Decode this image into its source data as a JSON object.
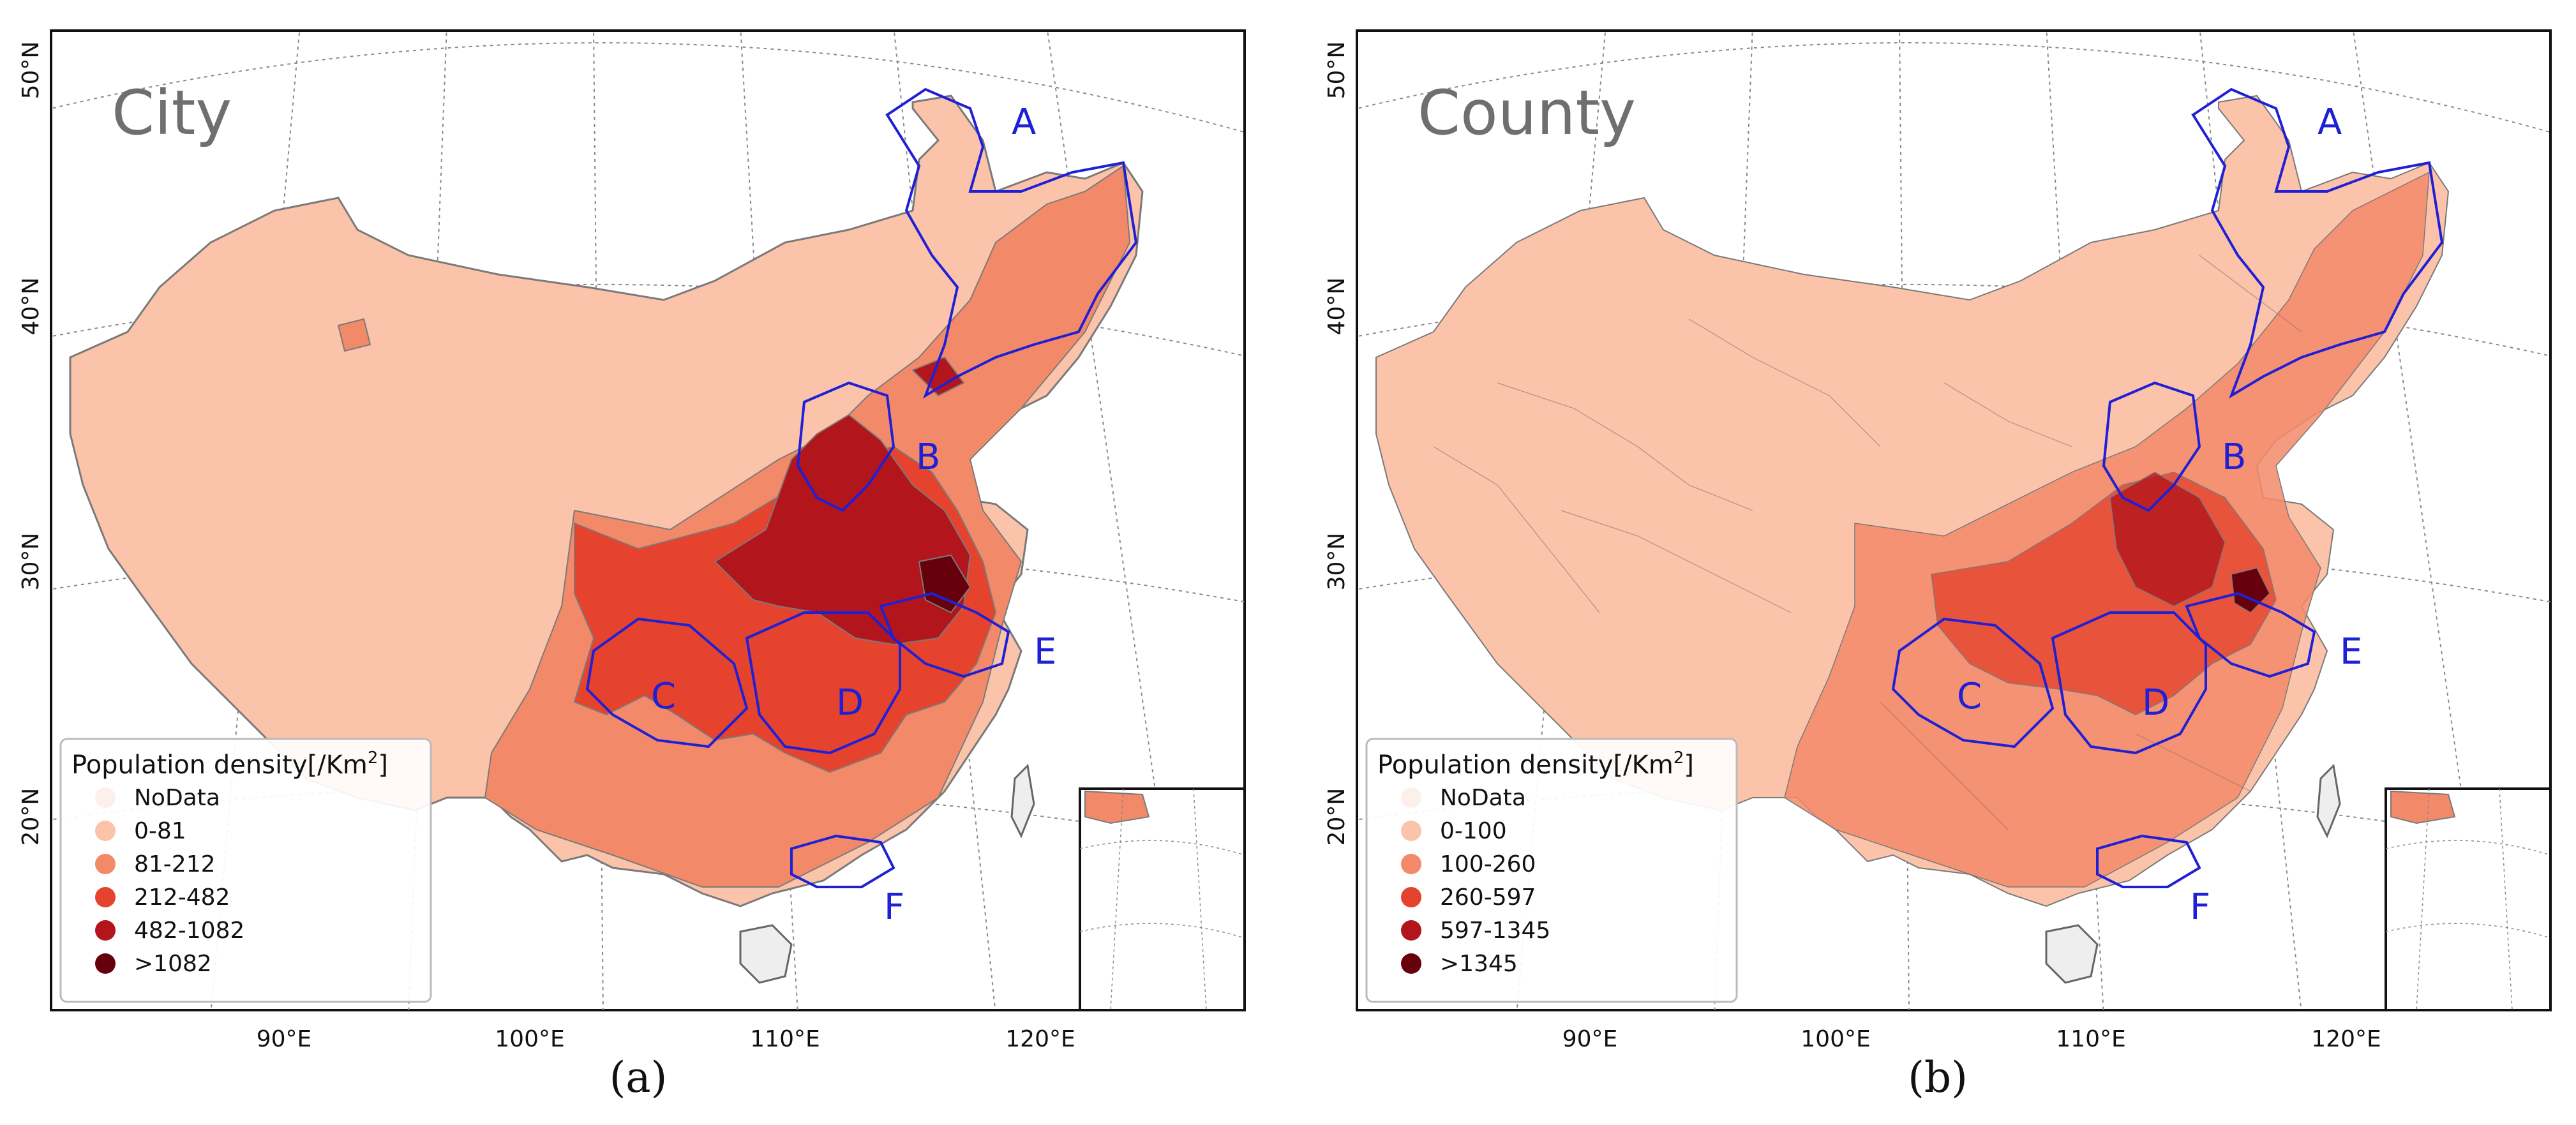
{
  "axes": {
    "lat_labels": [
      "50°N",
      "40°N",
      "30°N",
      "20°N"
    ],
    "lon_labels": [
      "90°E",
      "100°E",
      "110°E",
      "120°E"
    ]
  },
  "region_labels": [
    "A",
    "B",
    "C",
    "D",
    "E",
    "F"
  ],
  "colors": {
    "nodata": "#fdf0ea",
    "class1": "#fbc3a9",
    "class2": "#f28a6a",
    "class3": "#e5432e",
    "class4": "#b3151c",
    "class5": "#67000d",
    "region_outline": "#1f1fd6",
    "graticule": "#777777",
    "boundary": "#7a7a7a"
  },
  "panels": [
    {
      "id": "a",
      "title": "City",
      "caption": "(a)",
      "legend": {
        "title": "Population density[/Km",
        "title_sup": "2",
        "title_end": "]",
        "items": [
          {
            "label": "NoData",
            "color_key": "nodata"
          },
          {
            "label": "0-81",
            "color_key": "class1"
          },
          {
            "label": "81-212",
            "color_key": "class2"
          },
          {
            "label": "212-482",
            "color_key": "class3"
          },
          {
            "label": "482-1082",
            "color_key": "class4"
          },
          {
            "label": ">1082",
            "color_key": "class5"
          }
        ]
      }
    },
    {
      "id": "b",
      "title": "County",
      "caption": "(b)",
      "legend": {
        "title": "Population density[/Km",
        "title_sup": "2",
        "title_end": "]",
        "items": [
          {
            "label": "NoData",
            "color_key": "nodata"
          },
          {
            "label": "0-100",
            "color_key": "class1"
          },
          {
            "label": "100-260",
            "color_key": "class2"
          },
          {
            "label": "260-597",
            "color_key": "class3"
          },
          {
            "label": "597-1345",
            "color_key": "class4"
          },
          {
            "label": ">1345",
            "color_key": "class5"
          }
        ]
      }
    }
  ]
}
